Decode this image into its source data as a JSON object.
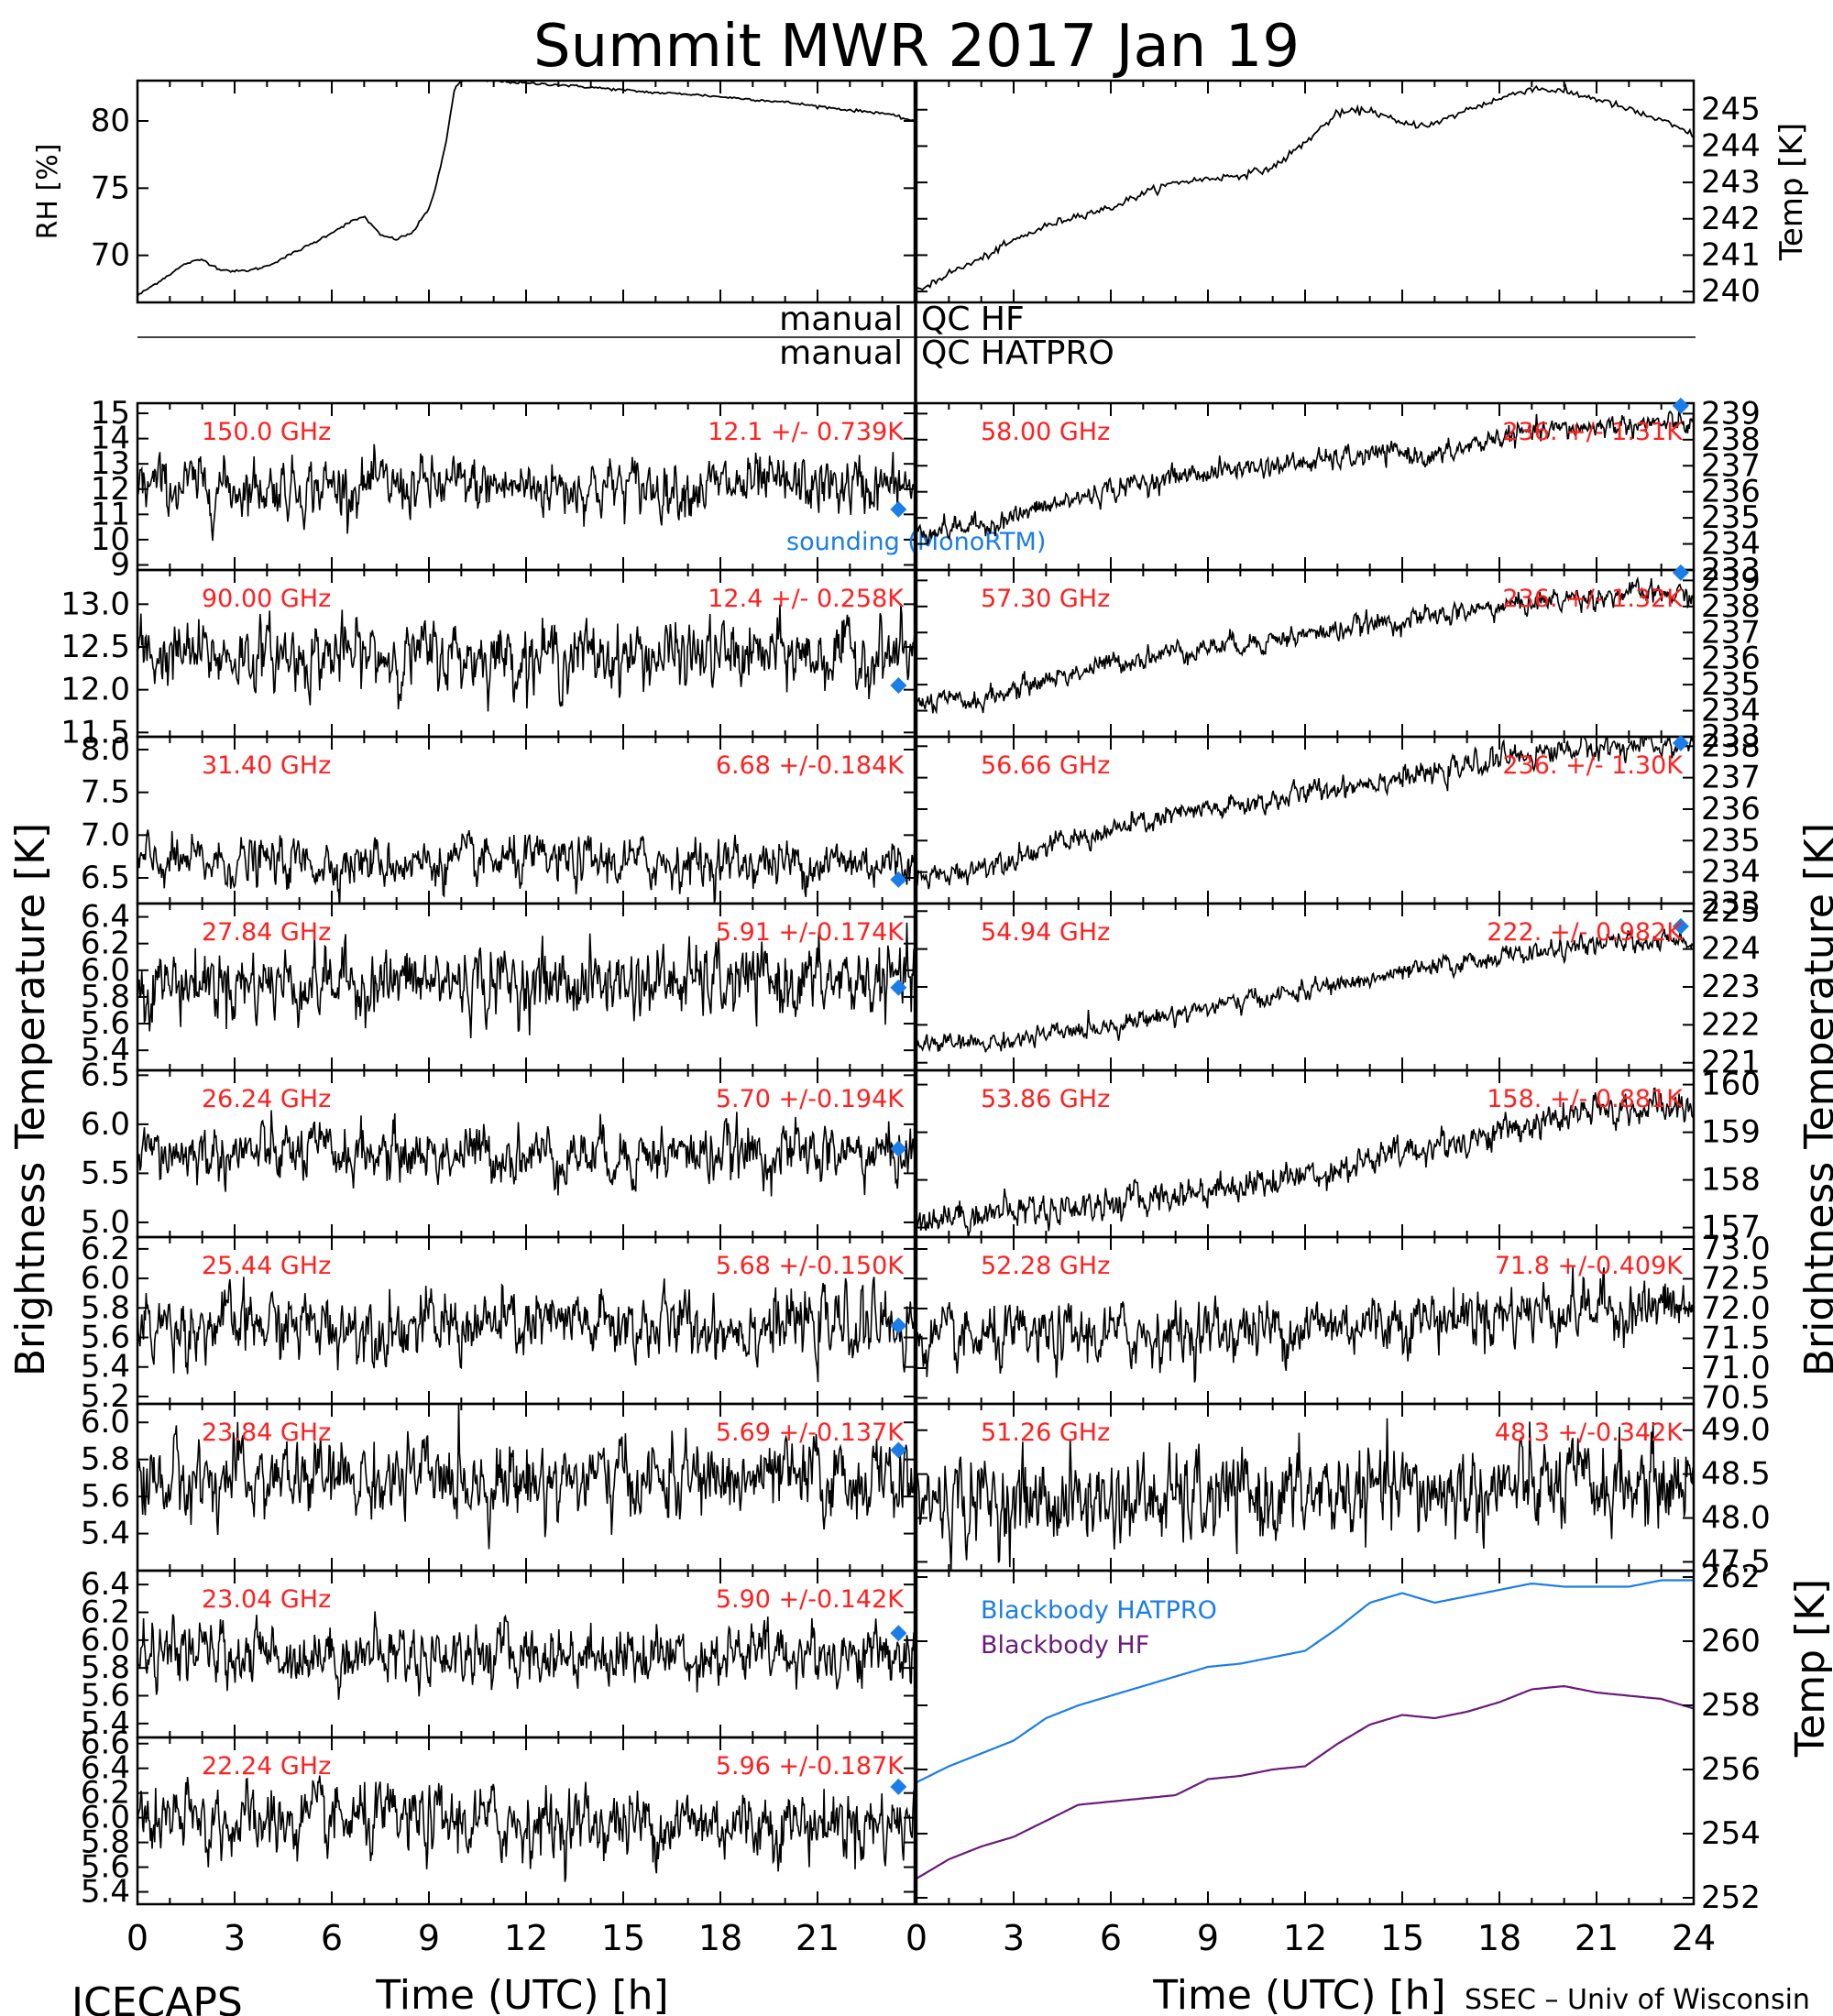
{
  "title": "Summit MWR 2017 Jan 19",
  "footer_left": "ICECAPS",
  "footer_right": "SSEC – Univ of Wisconsin",
  "qc": {
    "hf": {
      "left": "manual",
      "right": "QC HF"
    },
    "hatpro": {
      "left": "manual",
      "right": "QC HATPRO"
    }
  },
  "legend_sounding": "sounding (MonoRTM)",
  "left_ylabel": "Brightness Temperature [K]",
  "right_ylabel": "Brightness Temperature [K]",
  "bb_ylabel": "Temp [K]",
  "time_axis": {
    "xlabel": "Time (UTC) [h]",
    "ticks": [
      "0",
      "3",
      "6",
      "9",
      "12",
      "15",
      "18",
      "21",
      "24"
    ]
  },
  "colors": {
    "data": "#000000",
    "annotation": "#ff2020",
    "sounding": "#1a7de8",
    "hatpro": "#1a7de8",
    "hf": "#6a1a7a"
  },
  "chart_data": [
    {
      "id": "rh",
      "type": "line",
      "ylabel": "RH [%]",
      "xlim": [
        0,
        24
      ],
      "ylim": [
        66.5,
        83
      ],
      "yticks": [
        "70",
        "75",
        "80"
      ],
      "x": [
        0,
        0.5,
        1,
        1.5,
        2,
        2.5,
        3,
        3.5,
        4,
        4.5,
        5,
        5.5,
        6,
        6.5,
        7,
        7.5,
        8,
        8.5,
        9,
        9.2,
        9.5,
        9.8,
        10,
        11,
        12,
        13,
        14,
        15,
        16,
        17,
        18,
        19,
        20,
        21,
        22,
        23,
        24
      ],
      "values": [
        67,
        67.8,
        68.6,
        69.4,
        69.7,
        69,
        68.8,
        68.9,
        69.2,
        69.8,
        70.4,
        71,
        71.7,
        72.4,
        72.9,
        71.5,
        71.2,
        71.7,
        73.5,
        75,
        78,
        82.5,
        83,
        83,
        82.8,
        82.7,
        82.5,
        82.3,
        82.1,
        82,
        81.8,
        81.6,
        81.4,
        81.1,
        80.8,
        80.6,
        80
      ]
    },
    {
      "id": "air_temp",
      "type": "line",
      "ylabel": "Temp [K]",
      "xlim": [
        0,
        24
      ],
      "ylim": [
        239.7,
        245.8
      ],
      "yticks": [
        "240",
        "241",
        "242",
        "243",
        "244",
        "245"
      ],
      "x": [
        0,
        1,
        2,
        3,
        4,
        5,
        6,
        7,
        8,
        9,
        10,
        11,
        12,
        13,
        14,
        15,
        16,
        17,
        18,
        19,
        20,
        21,
        22,
        23,
        24
      ],
      "values": [
        240,
        240.5,
        240.9,
        241.4,
        241.8,
        242.1,
        242.3,
        242.7,
        243,
        243.1,
        243.2,
        243.4,
        244.1,
        244.9,
        245,
        244.6,
        244.6,
        245,
        245.3,
        245.6,
        245.5,
        245.3,
        245,
        244.7,
        244.3
      ]
    },
    {
      "id": "ch_150",
      "type": "scatter",
      "side": "left",
      "freq": "150.0 GHz",
      "stats": "12.1 +/- 0.739K",
      "ylim": [
        8.8,
        15.4
      ],
      "yticks": [
        "9",
        "10",
        "11",
        "12",
        "13",
        "14",
        "15"
      ],
      "mean": 12.1,
      "std": 0.739,
      "x_range": [
        0,
        24
      ],
      "sounding": {
        "x": 23.5,
        "y": 11.2
      }
    },
    {
      "id": "ch_90",
      "type": "scatter",
      "side": "left",
      "freq": "90.00 GHz",
      "stats": "12.4 +/- 0.258K",
      "ylim": [
        11.45,
        13.4
      ],
      "yticks": [
        "11.5",
        "12.0",
        "12.5",
        "13.0"
      ],
      "mean": 12.4,
      "std": 0.258,
      "x_range": [
        0,
        24
      ],
      "sounding": {
        "x": 23.5,
        "y": 12.05
      }
    },
    {
      "id": "ch_31",
      "type": "scatter",
      "side": "left",
      "freq": "31.40 GHz",
      "stats": "6.68 +/-0.184K",
      "ylim": [
        6.2,
        8.15
      ],
      "yticks": [
        "6.5",
        "7.0",
        "7.5",
        "8.0"
      ],
      "mean": 6.68,
      "std": 0.184,
      "x_range": [
        0,
        24
      ],
      "sounding": {
        "x": 23.5,
        "y": 6.48
      }
    },
    {
      "id": "ch_27",
      "type": "scatter",
      "side": "left",
      "freq": "27.84 GHz",
      "stats": "5.91 +/-0.174K",
      "ylim": [
        5.25,
        6.5
      ],
      "yticks": [
        "5.4",
        "5.6",
        "5.8",
        "6.0",
        "6.2",
        "6.4"
      ],
      "mean": 5.91,
      "std": 0.174,
      "x_range": [
        0,
        24
      ],
      "sounding": {
        "x": 23.5,
        "y": 5.87
      }
    },
    {
      "id": "ch_26",
      "type": "scatter",
      "side": "left",
      "freq": "26.24 GHz",
      "stats": "5.70 +/-0.194K",
      "ylim": [
        4.85,
        6.55
      ],
      "yticks": [
        "5.0",
        "5.5",
        "6.0",
        "6.5"
      ],
      "mean": 5.7,
      "std": 0.194,
      "x_range": [
        0,
        24
      ],
      "sounding": {
        "x": 23.5,
        "y": 5.75
      }
    },
    {
      "id": "ch_25",
      "type": "scatter",
      "side": "left",
      "freq": "25.44 GHz",
      "stats": "5.68 +/-0.150K",
      "ylim": [
        5.15,
        6.28
      ],
      "yticks": [
        "5.2",
        "5.4",
        "5.6",
        "5.8",
        "6.0",
        "6.2"
      ],
      "mean": 5.68,
      "std": 0.15,
      "x_range": [
        0,
        24
      ],
      "sounding": {
        "x": 23.5,
        "y": 5.68
      }
    },
    {
      "id": "ch_23_84",
      "type": "scatter",
      "side": "left",
      "freq": "23.84 GHz",
      "stats": "5.69 +/-0.137K",
      "ylim": [
        5.2,
        6.1
      ],
      "yticks": [
        "5.4",
        "5.6",
        "5.8",
        "6.0"
      ],
      "mean": 5.69,
      "std": 0.137,
      "x_range": [
        0,
        24
      ],
      "sounding": {
        "x": 23.5,
        "y": 5.85
      }
    },
    {
      "id": "ch_23_04",
      "type": "scatter",
      "side": "left",
      "freq": "23.04 GHz",
      "stats": "5.90 +/-0.142K",
      "ylim": [
        5.3,
        6.5
      ],
      "yticks": [
        "5.4",
        "5.6",
        "5.8",
        "6.0",
        "6.2",
        "6.4"
      ],
      "mean": 5.9,
      "std": 0.142,
      "x_range": [
        0,
        24
      ],
      "sounding": {
        "x": 23.5,
        "y": 6.05
      }
    },
    {
      "id": "ch_22_24",
      "type": "scatter",
      "side": "left",
      "freq": "22.24 GHz",
      "stats": "5.96 +/-0.187K",
      "ylim": [
        5.3,
        6.65
      ],
      "yticks": [
        "5.4",
        "5.6",
        "5.8",
        "6.0",
        "6.2",
        "6.4",
        "6.6"
      ],
      "mean": 5.96,
      "std": 0.187,
      "x_range": [
        0,
        24
      ],
      "sounding": {
        "x": 23.5,
        "y": 6.25
      }
    },
    {
      "id": "ch_58",
      "type": "scatter",
      "side": "right",
      "freq": "58.00 GHz",
      "stats": "236. +/- 1.31K",
      "ylim": [
        233,
        239.4
      ],
      "yticks": [
        "233",
        "234",
        "235",
        "236",
        "237",
        "238",
        "239"
      ],
      "trend": {
        "x": [
          0,
          1,
          2,
          4,
          6,
          8,
          10,
          12,
          14,
          15,
          16,
          18,
          20,
          22,
          24
        ],
        "y": [
          234.5,
          234.6,
          234.7,
          235.4,
          236.1,
          236.6,
          236.9,
          237.1,
          237.4,
          237.5,
          237.3,
          238.1,
          238.4,
          238.6,
          238.6
        ]
      },
      "std": 0.25,
      "sounding": {
        "x": 23.6,
        "y": 239.3
      }
    },
    {
      "id": "ch_57_30",
      "type": "scatter",
      "side": "right",
      "freq": "57.30 GHz",
      "stats": "236. +/- 1.32K",
      "ylim": [
        233,
        239.4
      ],
      "yticks": [
        "233",
        "234",
        "235",
        "236",
        "237",
        "238",
        "239"
      ],
      "trend": {
        "x": [
          0,
          1,
          2,
          4,
          6,
          8,
          10,
          12,
          14,
          16,
          18,
          20,
          22,
          24
        ],
        "y": [
          234.3,
          234.3,
          234.4,
          235.2,
          235.8,
          236.3,
          236.6,
          236.9,
          237.3,
          237.6,
          238,
          238.3,
          238.5,
          238.4
        ]
      },
      "std": 0.25,
      "sounding": {
        "x": 23.6,
        "y": 239.3
      }
    },
    {
      "id": "ch_56_66",
      "type": "scatter",
      "side": "right",
      "freq": "56.66 GHz",
      "stats": "236. +/- 1.30K",
      "ylim": [
        233,
        238.3
      ],
      "yticks": [
        "233",
        "234",
        "235",
        "236",
        "237",
        "238"
      ],
      "trend": {
        "x": [
          0,
          1,
          2,
          4,
          6,
          8,
          10,
          12,
          14,
          16,
          18,
          20,
          22,
          24
        ],
        "y": [
          233.8,
          233.9,
          234.2,
          234.8,
          235.3,
          235.8,
          236.1,
          236.5,
          236.9,
          237.1,
          237.6,
          237.9,
          238,
          238
        ]
      },
      "std": 0.22,
      "sounding": {
        "x": 23.6,
        "y": 238.1
      }
    },
    {
      "id": "ch_54_94",
      "type": "scatter",
      "side": "right",
      "freq": "54.94 GHz",
      "stats": "222. +/- 0.982K",
      "ylim": [
        220.8,
        225.2
      ],
      "yticks": [
        "221",
        "222",
        "223",
        "224",
        "225"
      ],
      "trend": {
        "x": [
          0,
          2,
          4,
          6,
          8,
          10,
          12,
          14,
          16,
          18,
          20,
          22,
          24
        ],
        "y": [
          221.5,
          221.5,
          221.7,
          222,
          222.3,
          222.6,
          222.9,
          223.2,
          223.5,
          223.8,
          224,
          224.2,
          224.2
        ]
      },
      "std": 0.15,
      "sounding": {
        "x": 23.6,
        "y": 224.6
      }
    },
    {
      "id": "ch_53_86",
      "type": "scatter",
      "side": "right",
      "freq": "53.86 GHz",
      "stats": "158. +/- 0.881K",
      "ylim": [
        156.8,
        160.3
      ],
      "yticks": [
        "157",
        "158",
        "159",
        "160"
      ],
      "trend": {
        "x": [
          0,
          2,
          4,
          6,
          8,
          10,
          12,
          14,
          16,
          18,
          20,
          22,
          24
        ],
        "y": [
          157.2,
          157.3,
          157.4,
          157.5,
          157.7,
          157.9,
          158.1,
          158.4,
          158.7,
          159,
          159.3,
          159.5,
          159.5
        ]
      },
      "std": 0.2
    },
    {
      "id": "ch_52_28",
      "type": "scatter",
      "side": "right",
      "freq": "52.28 GHz",
      "stats": "71.8 +/-0.409K",
      "ylim": [
        70.4,
        73.2
      ],
      "yticks": [
        "70.5",
        "71.0",
        "71.5",
        "72.0",
        "72.5",
        "73.0"
      ],
      "trend": {
        "x": [
          0,
          4,
          8,
          12,
          16,
          20,
          24
        ],
        "y": [
          71.4,
          71.5,
          71.6,
          71.7,
          71.85,
          72,
          72
        ]
      },
      "std": 0.3
    },
    {
      "id": "ch_51_26",
      "type": "scatter",
      "side": "right",
      "freq": "51.26 GHz",
      "stats": "48.3 +/-0.342K",
      "ylim": [
        47.4,
        49.3
      ],
      "yticks": [
        "47.5",
        "48.0",
        "48.5",
        "49.0"
      ],
      "trend": {
        "x": [
          0,
          8,
          16,
          24
        ],
        "y": [
          48.2,
          48.2,
          48.3,
          48.4
        ]
      },
      "std": 0.3
    },
    {
      "id": "blackbody",
      "type": "line",
      "ylabel": "Temp [K]",
      "xlim": [
        0,
        24
      ],
      "ylim": [
        251.8,
        262.2
      ],
      "yticks": [
        "252",
        "254",
        "256",
        "258",
        "260",
        "262"
      ],
      "series": [
        {
          "name": "Blackbody HATPRO",
          "x": [
            0,
            1,
            2,
            3,
            4,
            5,
            6,
            7,
            8,
            9,
            10,
            11,
            12,
            13,
            14,
            15,
            16,
            17,
            18,
            19,
            20,
            21,
            22,
            23,
            24
          ],
          "values": [
            255.6,
            256.1,
            256.5,
            256.9,
            257.6,
            258,
            258.3,
            258.6,
            258.9,
            259.2,
            259.3,
            259.5,
            259.7,
            260.4,
            261.2,
            261.5,
            261.2,
            261.4,
            261.6,
            261.8,
            261.7,
            261.7,
            261.7,
            261.9,
            261.9
          ]
        },
        {
          "name": "Blackbody HF",
          "x": [
            0,
            1,
            2,
            3,
            4,
            5,
            6,
            7,
            8,
            9,
            10,
            11,
            12,
            13,
            14,
            15,
            16,
            17,
            18,
            19,
            20,
            21,
            22,
            23,
            24
          ],
          "values": [
            252.6,
            253.2,
            253.6,
            253.9,
            254.4,
            254.9,
            255,
            255.1,
            255.2,
            255.7,
            255.8,
            256,
            256.1,
            256.8,
            257.4,
            257.7,
            257.6,
            257.8,
            258.1,
            258.5,
            258.6,
            258.4,
            258.3,
            258.2,
            257.9
          ]
        }
      ]
    }
  ]
}
